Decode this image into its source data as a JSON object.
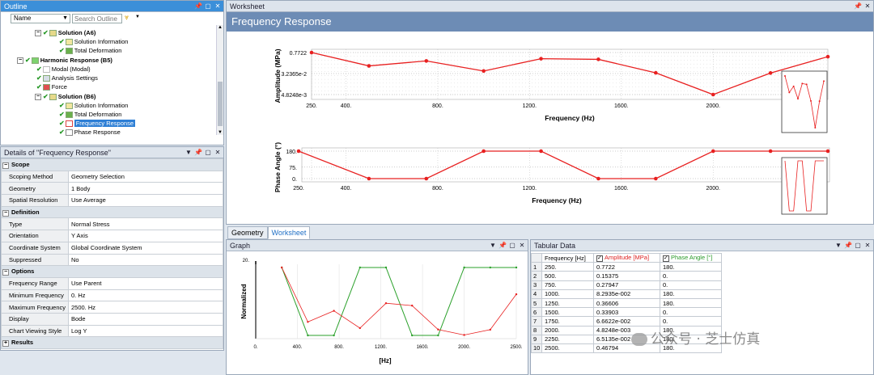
{
  "outline": {
    "title": "Outline",
    "name_dropdown": "Name",
    "search_placeholder": "Search Outline",
    "items": [
      {
        "label": "Solution (A6)",
        "bold": true
      },
      {
        "label": "Solution Information"
      },
      {
        "label": "Total Deformation"
      },
      {
        "label": "Harmonic Response (B5)",
        "bold": true
      },
      {
        "label": "Modal (Modal)"
      },
      {
        "label": "Analysis Settings"
      },
      {
        "label": "Force"
      },
      {
        "label": "Solution (B6)",
        "bold": true
      },
      {
        "label": "Solution Information"
      },
      {
        "label": "Total Deformation"
      },
      {
        "label": "Frequency Response",
        "selected": true
      },
      {
        "label": "Phase Response"
      }
    ]
  },
  "details": {
    "title": "Details of \"Frequency Response\"",
    "rows": [
      {
        "type": "section",
        "label": "Scope"
      },
      {
        "key": "Scoping Method",
        "value": "Geometry Selection"
      },
      {
        "key": "Geometry",
        "value": "1 Body"
      },
      {
        "key": "Spatial Resolution",
        "value": "Use Average"
      },
      {
        "type": "section",
        "label": "Definition"
      },
      {
        "key": "Type",
        "value": "Normal Stress"
      },
      {
        "key": "Orientation",
        "value": "Y Axis"
      },
      {
        "key": "Coordinate System",
        "value": "Global Coordinate System"
      },
      {
        "key": "Suppressed",
        "value": "No"
      },
      {
        "type": "section",
        "label": "Options"
      },
      {
        "key": "Frequency Range",
        "value": "Use Parent"
      },
      {
        "key": "Minimum Frequency",
        "value": "0. Hz"
      },
      {
        "key": "Maximum Frequency",
        "value": "2500. Hz"
      },
      {
        "key": "Display",
        "value": "Bode"
      },
      {
        "key": "Chart Viewing Style",
        "value": "Log Y"
      },
      {
        "type": "section",
        "label": "Results",
        "collapsed": true
      }
    ]
  },
  "worksheet": {
    "title": "Worksheet",
    "header": "Frequency Response"
  },
  "bottom_tabs": [
    "Geometry",
    "Worksheet"
  ],
  "graph": {
    "title": "Graph"
  },
  "tabular": {
    "title": "Tabular Data",
    "headers": [
      "Frequency [Hz]",
      "Amplitude [MPa]",
      "Phase Angle [°]"
    ],
    "rows": [
      [
        "1",
        "250.",
        "0.7722",
        "180."
      ],
      [
        "2",
        "500.",
        "0.15375",
        "0."
      ],
      [
        "3",
        "750.",
        "0.27947",
        "0."
      ],
      [
        "4",
        "1000.",
        "8.2935e-002",
        "180."
      ],
      [
        "5",
        "1250.",
        "0.36606",
        "180."
      ],
      [
        "6",
        "1500.",
        "0.33903",
        "0."
      ],
      [
        "7",
        "1750.",
        "6.6622e-002",
        "0."
      ],
      [
        "8",
        "2000.",
        "4.8248e-003",
        "180."
      ],
      [
        "9",
        "2250.",
        "6.5135e-002",
        "180."
      ],
      [
        "10",
        "2500.",
        "0.46794",
        "180."
      ]
    ]
  },
  "watermark": "公众号 · 芝士仿真",
  "colors": {
    "amplitude": "#e82020",
    "phase": "#2aa02a",
    "accent": "#3b8fd9"
  },
  "chart_data": [
    {
      "type": "line",
      "name": "Amplitude chart",
      "xlabel": "Frequency (Hz)",
      "ylabel": "Amplitude (MPa)",
      "ytick_labels": [
        "0.7722",
        "3.2365e-2",
        "4.8248e-3"
      ],
      "xtick_labels": [
        "250.",
        "400.",
        "800.",
        "1200.",
        "1600.",
        "2000."
      ],
      "x": [
        250,
        500,
        750,
        1000,
        1250,
        1500,
        1750,
        2000,
        2250,
        2500
      ],
      "values": [
        0.7722,
        0.15375,
        0.27947,
        0.082935,
        0.36606,
        0.33903,
        0.066622,
        0.0048248,
        0.065135,
        0.46794
      ],
      "log_y": true
    },
    {
      "type": "line",
      "name": "Phase chart",
      "xlabel": "Frequency (Hz)",
      "ylabel": "Phase Angle (°)",
      "ytick_labels": [
        "180.",
        "75.",
        "0."
      ],
      "xtick_labels": [
        "250.",
        "400.",
        "800.",
        "1200.",
        "1600.",
        "2000."
      ],
      "x": [
        250,
        500,
        750,
        1000,
        1250,
        1500,
        1750,
        2000,
        2250,
        2500
      ],
      "values": [
        180,
        0,
        0,
        180,
        180,
        0,
        0,
        180,
        180,
        180
      ],
      "ylim": [
        0,
        180
      ]
    },
    {
      "type": "line",
      "name": "Graph",
      "xlabel": "[Hz]",
      "ylabel": "Normalized",
      "ytick_labels": [
        "20."
      ],
      "xtick_labels": [
        "0.",
        "400.",
        "800.",
        "1200.",
        "1600.",
        "2000.",
        "2500."
      ],
      "x": [
        250,
        500,
        750,
        1000,
        1250,
        1500,
        1750,
        2000,
        2250,
        2500
      ],
      "series": [
        {
          "name": "Amplitude [MPa]",
          "values": [
            0.7722,
            0.15375,
            0.27947,
            0.082935,
            0.36606,
            0.33903,
            0.066622,
            0.0048248,
            0.065135,
            0.46794
          ]
        },
        {
          "name": "Phase Angle [°]",
          "values": [
            180,
            0,
            0,
            180,
            180,
            0,
            0,
            180,
            180,
            180
          ]
        }
      ]
    }
  ]
}
